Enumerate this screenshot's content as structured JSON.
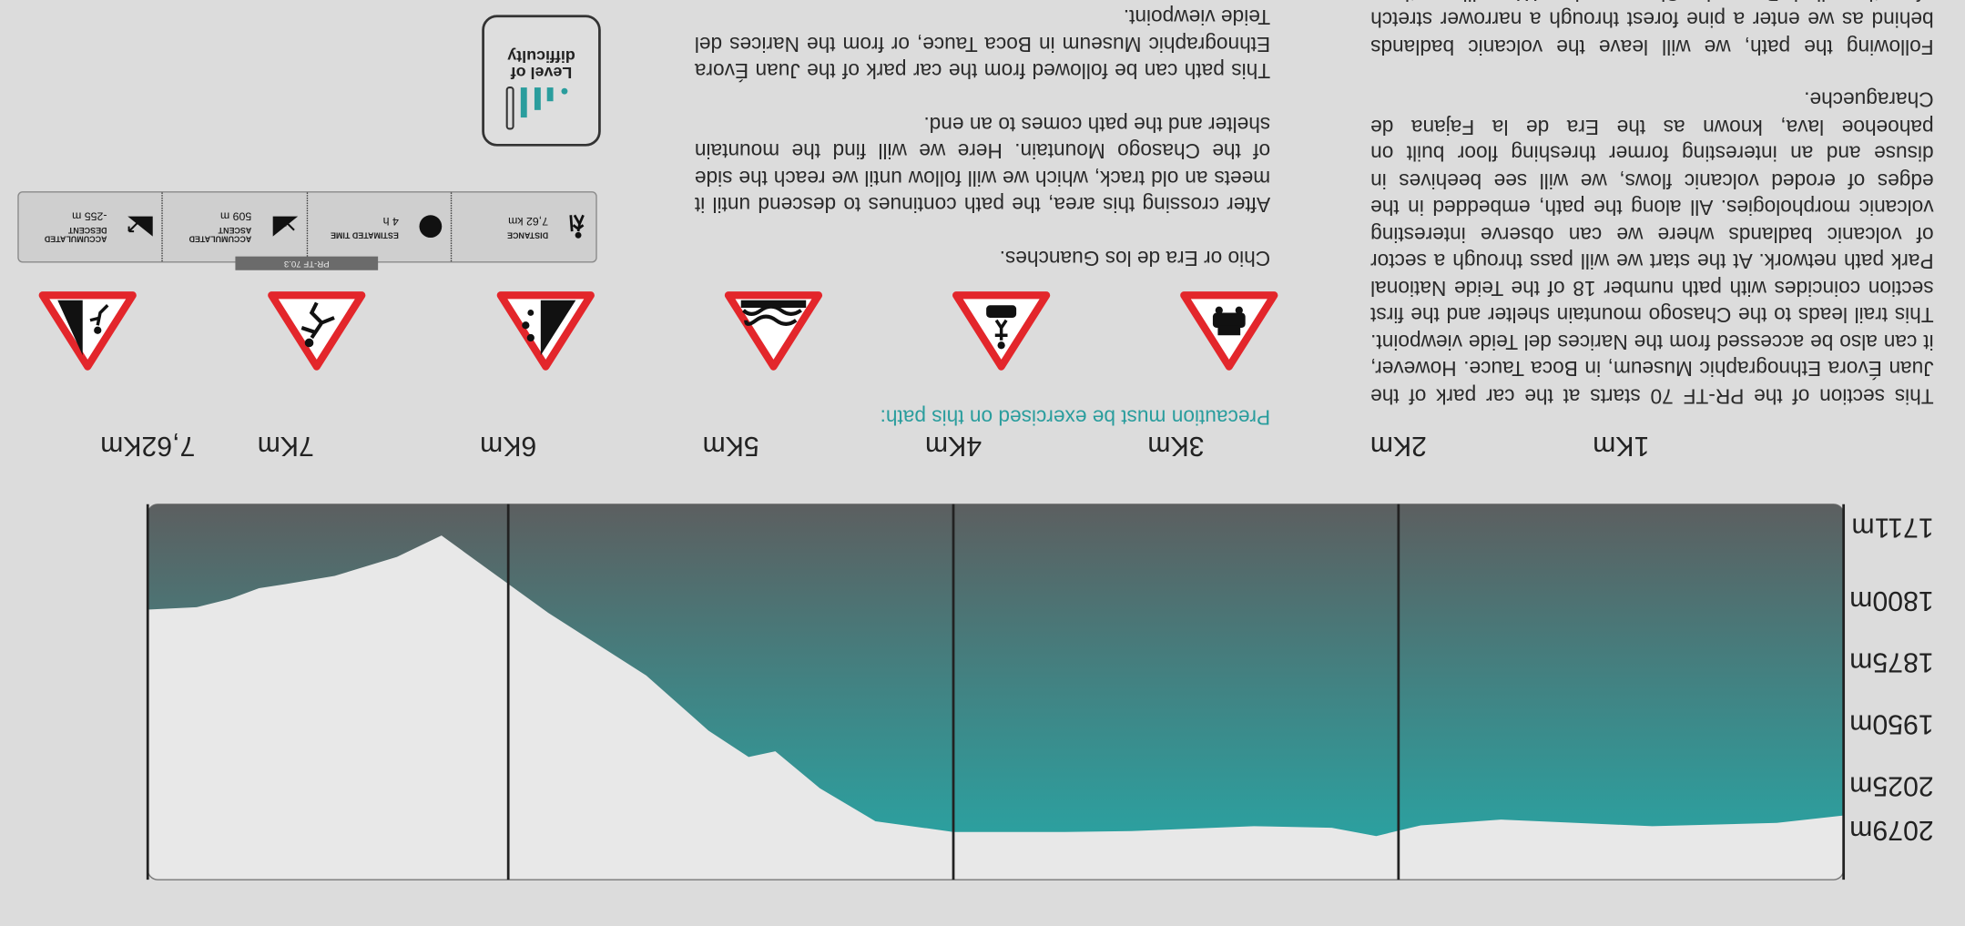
{
  "precaution_heading": "Precaution must be exercised on this path:",
  "description_left": [
    "This section of the PR-TF 70 starts at the car park of the Juan Évora Ethnographic Museum, in Boca Tauce. However, it can also be accessed from the Narices del Teide viewpoint. This trail leads to the Chasogo mountain shelter and the first section coincides with path number 18 of the Teide National Park path network. At the start we will pass through a sector of volcanic badlands where we can observe interesting volcanic morphologies. All along the path, embedded in the edges of eroded volcanic flows, we will see beehives in disuse and an interesting former threshing floor built on pahoehoe lava, known as the Era de la Fajana de Charagueche.",
    "Following the path, we will leave the volcanic badlands behind as we enter a pine forest through a narrower stretch of path called Paso de Charagueche. We will continue walking down"
  ],
  "description_right": [
    "Chio or Era de los Guanches.",
    "After crossing this area, the path continues to descend until it meets an old track, which we will follow until we reach the side of the Chasogo Mountain. Here we will find the mountain shelter and the path comes to an end.",
    "This path can be followed from the car park of the Juan Évora Ethnographic Museum in Boca Tauce, or from the Narices del Teide viewpoint."
  ],
  "route_code": "PR-TF 70.3",
  "stats": [
    {
      "label": "DISTANCE",
      "value": "7,62 km"
    },
    {
      "label": "ESTIMATED TIME",
      "value": "4 h"
    },
    {
      "label": "ACCUMULATED ASCENT",
      "value": "509 m"
    },
    {
      "label": "ACCUMULATED DESCENT",
      "value": "-255 m"
    }
  ],
  "difficulty_label": [
    "Level of",
    "difficulty"
  ],
  "elevation_profile": {
    "type": "area",
    "x": [
      0,
      0.3,
      0.86,
      1.54,
      1.9,
      2.1,
      2.3,
      2.65,
      3.2,
      3.5,
      4.0,
      4.35,
      4.6,
      4.8,
      4.92,
      5.1,
      5.38,
      5.82,
      6.05,
      6.3,
      6.5,
      6.78,
      7.0,
      7.12,
      7.25,
      7.4,
      7.62
    ],
    "values": [
      2063,
      2072,
      2076,
      2068,
      2075,
      2088,
      2078,
      2076,
      2082,
      2083,
      2083,
      2070,
      2030,
      1985,
      1992,
      1960,
      1893,
      1817,
      1772,
      1723,
      1749,
      1772,
      1782,
      1787,
      1800,
      1810,
      1813
    ],
    "xlim": [
      0,
      7.62
    ],
    "ylim": [
      1685,
      2141
    ],
    "xticks": [
      {
        "value": 1,
        "label": "1Km"
      },
      {
        "value": 2,
        "label": "2Km"
      },
      {
        "value": 3,
        "label": "3Km"
      },
      {
        "value": 4,
        "label": "4Km"
      },
      {
        "value": 5,
        "label": "5Km"
      },
      {
        "value": 6,
        "label": "6Km"
      },
      {
        "value": 7,
        "label": "7Km"
      },
      {
        "value": 7.62,
        "label": "7,62Km"
      }
    ],
    "yticks": [
      {
        "value": 2079,
        "label": "2079m"
      },
      {
        "value": 2025,
        "label": "2025m"
      },
      {
        "value": 1950,
        "label": "1950m"
      },
      {
        "value": 1875,
        "label": "1875m"
      },
      {
        "value": 1800,
        "label": "1800m"
      },
      {
        "value": 1711,
        "label": "1711m"
      }
    ],
    "xgrid": [
      0,
      2,
      4,
      6,
      7.62
    ],
    "color_top": "#25a9a8",
    "color_bottom": "#5c5f60"
  }
}
